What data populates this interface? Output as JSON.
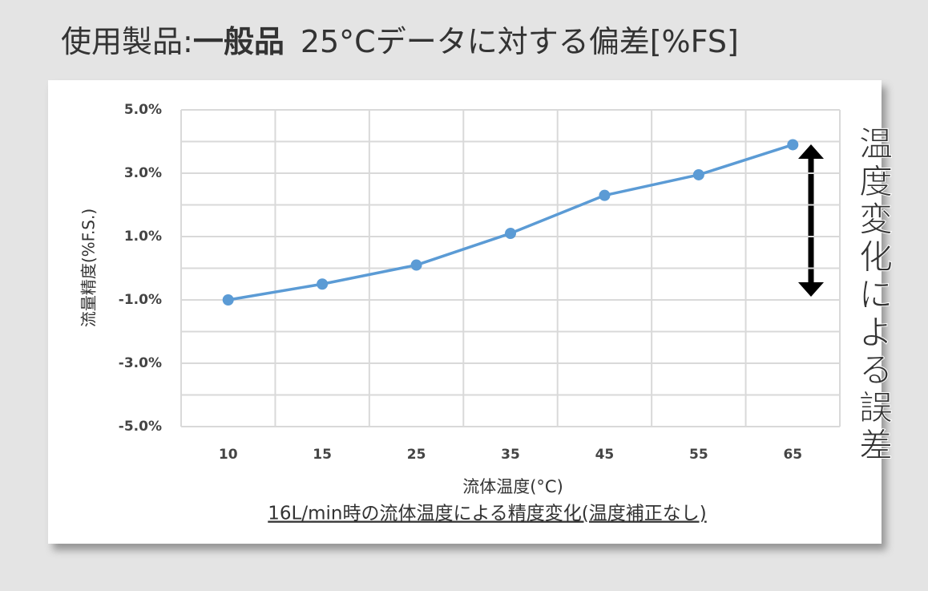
{
  "chart_data": {
    "type": "line",
    "title": [
      "使用製品:",
      "一般品",
      "25°Cデータに対する偏差[%FS]"
    ],
    "subtitle": "16L/min時の流体温度による精度変化(温度補正なし)",
    "x_label": "流体温度(°C)",
    "y_label": "流量精度(%F.S.)",
    "annotation": "温度変化による誤差",
    "categories": [
      "10",
      "15",
      "25",
      "35",
      "45",
      "55",
      "65"
    ],
    "series": [
      {
        "color": "#5b9bd5",
        "values": [
          -1.0,
          -0.5,
          0.1,
          1.1,
          2.3,
          2.95,
          3.9
        ]
      }
    ],
    "ylim": [
      -5,
      5
    ],
    "yticks": [
      {
        "value": 5,
        "label": "5.0%"
      },
      {
        "value": 3,
        "label": "3.0%"
      },
      {
        "value": 1,
        "label": "1.0%"
      },
      {
        "value": -1,
        "label": "-1.0%"
      },
      {
        "value": -3,
        "label": "-3.0%"
      },
      {
        "value": -5,
        "label": "-5.0%"
      }
    ],
    "minor_yticks": [
      4,
      2,
      0,
      -2,
      -4
    ],
    "grid": true
  }
}
